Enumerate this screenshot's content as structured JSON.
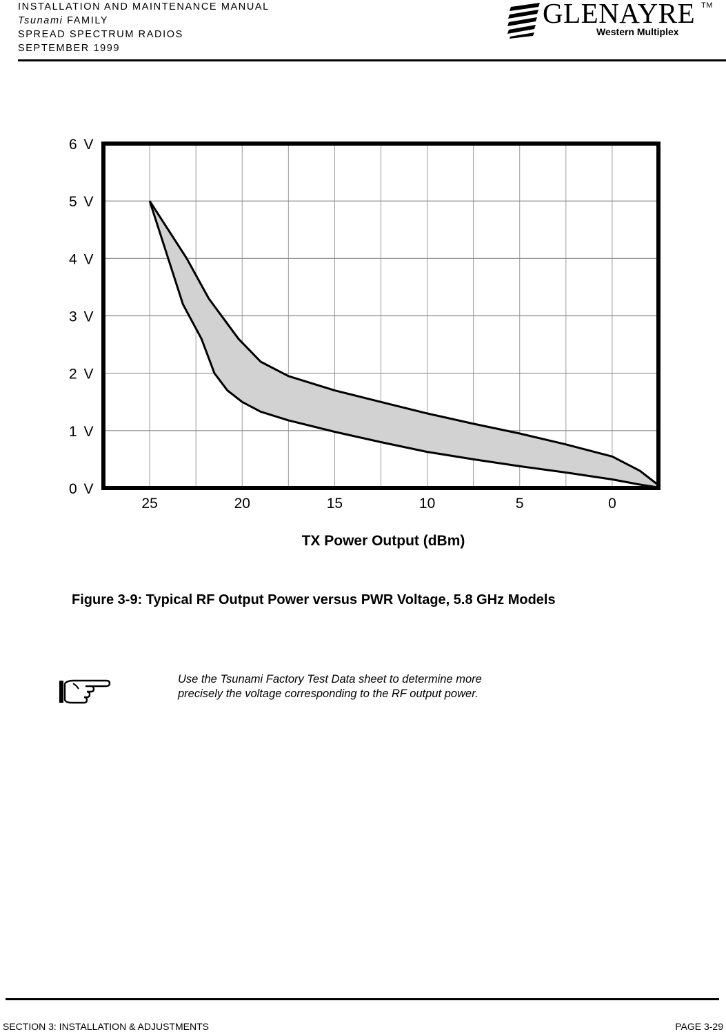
{
  "header": {
    "line1": "INSTALLATION AND MAINTENANCE MANUAL",
    "line2_italic": "Tsunami",
    "line2_rest": " FAMILY",
    "line3": "SPREAD SPECTRUM RADIOS",
    "line4": "SEPTEMBER 1999",
    "logo_word": "GLENAYRE",
    "logo_tm": "TM",
    "logo_sub": "Western Multiplex"
  },
  "chart_data": {
    "type": "line",
    "title": "",
    "xlabel": "TX Power Output (dBm)",
    "ylabel": "",
    "x_ticks": [
      "25",
      "20",
      "15",
      "10",
      "5",
      "0"
    ],
    "y_ticks": [
      "6 V",
      "5 V",
      "4 V",
      "3 V",
      "2 V",
      "1 V",
      "0 V"
    ],
    "xlim": [
      27.5,
      -2.5
    ],
    "ylim": [
      0,
      6
    ],
    "grid": true,
    "band": "shaded",
    "series": [
      {
        "x": [
          25,
          23,
          21.8,
          20.2,
          19,
          17.5,
          15,
          12.5,
          10,
          7.5,
          5,
          2.5,
          0,
          -1.5,
          -2.5
        ],
        "y": [
          5.0,
          4.0,
          3.3,
          2.6,
          2.2,
          1.95,
          1.7,
          1.5,
          1.3,
          1.12,
          0.95,
          0.76,
          0.55,
          0.3,
          0.05
        ]
      },
      {
        "x": [
          25,
          23.2,
          22.2,
          21.5,
          20.8,
          20.0,
          19.0,
          17.5,
          15,
          12.5,
          10,
          7.5,
          5,
          2.5,
          0,
          -1.5,
          -2.5
        ],
        "y": [
          5.0,
          3.2,
          2.6,
          2.0,
          1.7,
          1.5,
          1.33,
          1.18,
          0.98,
          0.8,
          0.63,
          0.5,
          0.38,
          0.27,
          0.15,
          0.06,
          0.01
        ]
      }
    ]
  },
  "caption": "Figure 3-9: Typical RF Output Power versus PWR Voltage, 5.8 GHz Models",
  "note": {
    "icon": "pointing-hand-icon",
    "line1": "Use the Tsunami Factory Test Data sheet to determine more",
    "line2": "precisely the voltage corresponding to the RF output power."
  },
  "footer": {
    "left": "SECTION 3: INSTALLATION & ADJUSTMENTS",
    "right": "PAGE 3-29"
  }
}
